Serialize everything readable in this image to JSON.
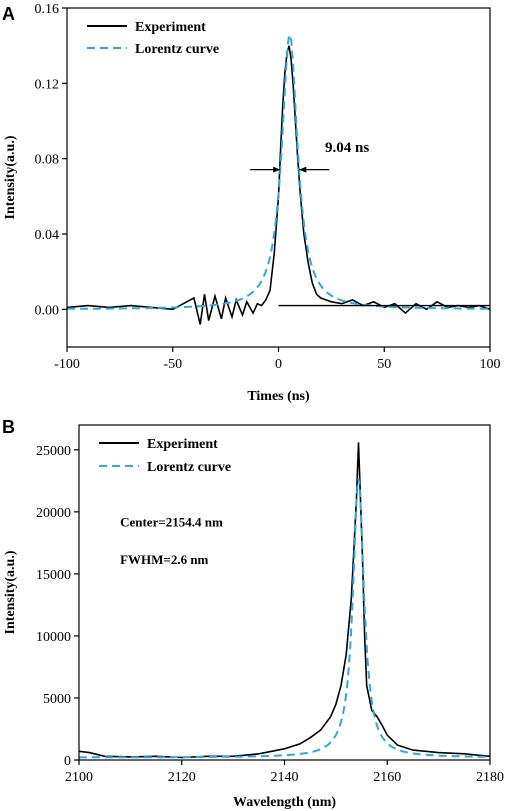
{
  "chart_data": [
    {
      "type": "line",
      "panel_label": "A",
      "xlabel": "Times (ns)",
      "ylabel": "Intensity(a.u.)",
      "xlim": [
        -100,
        100
      ],
      "ylim": [
        -0.02,
        0.16
      ],
      "xticks": [
        -100,
        -50,
        0,
        50,
        100
      ],
      "yticks": [
        0.0,
        0.04,
        0.08,
        0.12,
        0.16
      ],
      "ytick_labels": [
        "0.00",
        "0.04",
        "0.08",
        "0.12",
        "0.16"
      ],
      "grid": false,
      "legend_position": "top-left",
      "series": [
        {
          "name": "Experiment",
          "color": "#000000",
          "style": "solid",
          "x": [
            -100,
            -90,
            -80,
            -70,
            -60,
            -50,
            -45,
            -40,
            -37,
            -35,
            -33,
            -30,
            -27,
            -25,
            -22,
            -20,
            -17,
            -15,
            -12,
            -10,
            -8,
            -6,
            -4,
            -2,
            0,
            1,
            2,
            3,
            4,
            5,
            6,
            7,
            8,
            9,
            10,
            11,
            12,
            14,
            16,
            18,
            20,
            25,
            30,
            35,
            40,
            45,
            50,
            55,
            60,
            65,
            70,
            75,
            80,
            85,
            90,
            95,
            100
          ],
          "y": [
            0.001,
            0.002,
            0.001,
            0.002,
            0.001,
            0.0,
            0.003,
            0.006,
            -0.008,
            0.008,
            -0.006,
            0.007,
            -0.005,
            0.006,
            -0.004,
            0.005,
            -0.003,
            0.004,
            -0.002,
            0.003,
            0.002,
            0.005,
            0.01,
            0.03,
            0.06,
            0.085,
            0.108,
            0.125,
            0.136,
            0.14,
            0.132,
            0.118,
            0.1,
            0.082,
            0.066,
            0.052,
            0.04,
            0.025,
            0.014,
            0.008,
            0.006,
            0.004,
            0.003,
            0.005,
            0.002,
            0.004,
            0.001,
            0.003,
            -0.002,
            0.003,
            0.0,
            0.004,
            0.001,
            0.002,
            0.001,
            0.002,
            0.0
          ]
        },
        {
          "name": "Lorentz curve",
          "color": "#2fa8e0",
          "style": "dashed",
          "center": 5.3,
          "fwhm": 9.04,
          "peak": 0.146,
          "baseline": 0.0
        }
      ],
      "annotations": [
        {
          "text": "9.04 ns",
          "x": 22,
          "y": 0.0835
        }
      ]
    },
    {
      "type": "line",
      "panel_label": "B",
      "xlabel": "Wavelength (nm)",
      "ylabel": "Intensity(a.u.)",
      "xlim": [
        2100,
        2180
      ],
      "ylim": [
        0,
        27000
      ],
      "xticks": [
        2100,
        2120,
        2140,
        2160,
        2180
      ],
      "yticks": [
        0,
        5000,
        10000,
        15000,
        20000,
        25000
      ],
      "grid": false,
      "legend_position": "top-left",
      "series": [
        {
          "name": "Experiment",
          "color": "#000000",
          "style": "solid",
          "x": [
            2100,
            2102,
            2105,
            2110,
            2115,
            2120,
            2125,
            2130,
            2135,
            2140,
            2143,
            2145,
            2147,
            2149,
            2150,
            2151,
            2152,
            2153,
            2153.5,
            2154,
            2154.4,
            2154.8,
            2155.2,
            2155.6,
            2156,
            2157,
            2158,
            2159,
            2160,
            2162,
            2165,
            2170,
            2175,
            2180
          ],
          "y": [
            700,
            600,
            300,
            250,
            300,
            200,
            300,
            300,
            500,
            900,
            1300,
            1800,
            2400,
            3500,
            4500,
            6000,
            8500,
            13000,
            17000,
            21000,
            25600,
            21000,
            16000,
            10000,
            6000,
            4000,
            3500,
            2800,
            2000,
            1200,
            800,
            600,
            500,
            300
          ]
        },
        {
          "name": "Lorentz curve",
          "color": "#2fa8e0",
          "style": "dashed",
          "center": 2154.4,
          "fwhm": 2.6,
          "peak": 22500,
          "baseline": 200
        }
      ],
      "annotations": [
        {
          "text": "Center=2154.4 nm",
          "x": 2108,
          "y": 18800
        },
        {
          "text": "FWHM=2.6 nm",
          "x": 2108,
          "y": 15800
        }
      ]
    }
  ]
}
